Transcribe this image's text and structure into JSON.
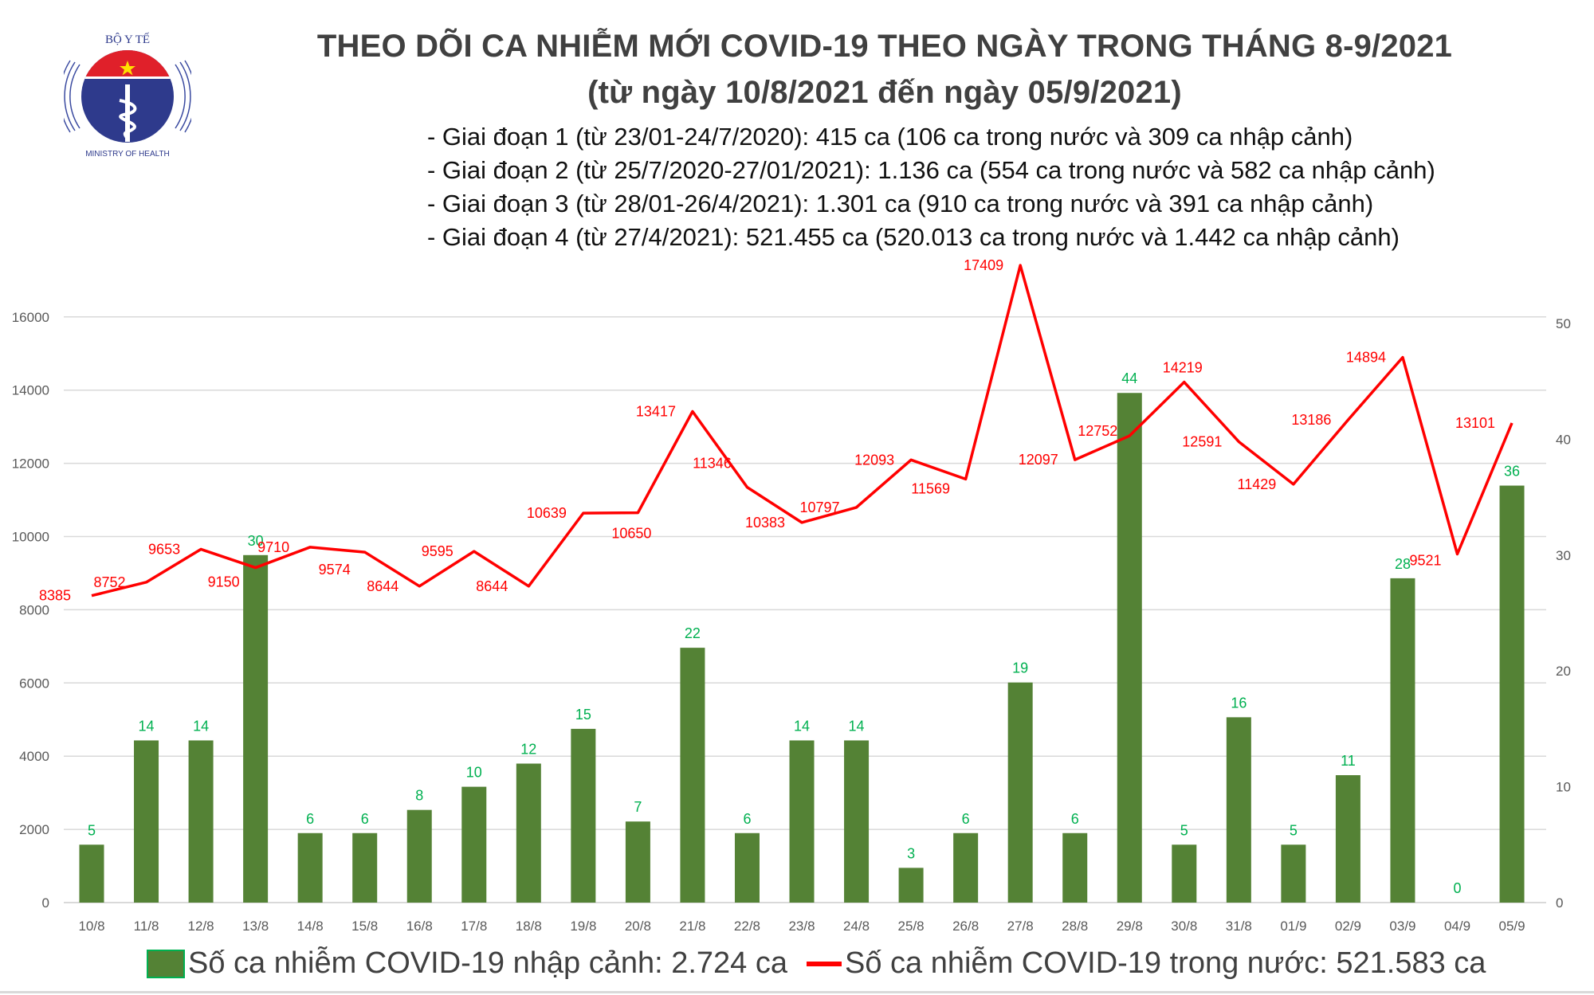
{
  "header": {
    "title_line1": "THEO DÕI CA NHIỄM MỚI COVID-19 THEO NGÀY TRONG THÁNG 8-9/2021",
    "title_line2": "(từ ngày 10/8/2021 đến ngày 05/9/2021)",
    "phases": [
      "- Giai đoạn 1 (từ 23/01-24/7/2020): 415 ca (106 ca trong nước và 309 ca nhập cảnh)",
      "- Giai đoạn 2 (từ 25/7/2020-27/01/2021): 1.136 ca (554 ca trong nước và 582 ca nhập cảnh)",
      "- Giai đoạn 3 (từ 28/01-26/4/2021): 1.301 ca (910 ca trong nước và 391 ca nhập cảnh)",
      "- Giai đoạn 4 (từ 27/4/2021): 521.455 ca (520.013 ca trong nước và 1.442 ca nhập cảnh)"
    ]
  },
  "logo": {
    "top_text": "BỘ Y TẾ",
    "bottom_text": "MINISTRY OF HEALTH"
  },
  "chart_data": {
    "type": "bar+line",
    "categories": [
      "10/8",
      "11/8",
      "12/8",
      "13/8",
      "14/8",
      "15/8",
      "16/8",
      "17/8",
      "18/8",
      "19/8",
      "20/8",
      "21/8",
      "22/8",
      "23/8",
      "24/8",
      "25/8",
      "26/8",
      "27/8",
      "28/8",
      "29/8",
      "30/8",
      "31/8",
      "01/9",
      "02/9",
      "03/9",
      "04/9",
      "05/9"
    ],
    "series": [
      {
        "name": "Số ca nhiễm COVID-19 nhập cảnh: 2.724 ca",
        "type": "bar",
        "axis": "right",
        "color": "#548235",
        "label_color": "#00B050",
        "values": [
          5,
          14,
          14,
          30,
          6,
          6,
          8,
          10,
          12,
          15,
          7,
          22,
          6,
          14,
          14,
          3,
          6,
          19,
          6,
          44,
          5,
          16,
          5,
          11,
          28,
          0,
          36
        ]
      },
      {
        "name": "Số ca nhiễm COVID-19 trong nước: 521.583 ca",
        "type": "line",
        "axis": "left",
        "color": "#FF0000",
        "label_color": "#FF0000",
        "values": [
          8385,
          8752,
          9653,
          9150,
          9710,
          9574,
          8644,
          9595,
          8644,
          10639,
          10650,
          13417,
          11346,
          10383,
          10797,
          12093,
          11569,
          17409,
          12097,
          12752,
          14219,
          12591,
          11429,
          13186,
          14894,
          9521,
          13101
        ]
      }
    ],
    "left_axis": {
      "ticks": [
        0,
        2000,
        4000,
        6000,
        8000,
        10000,
        12000,
        14000,
        16000
      ],
      "range": [
        0,
        18000
      ]
    },
    "right_axis": {
      "ticks": [
        0,
        10,
        20,
        30,
        40,
        50
      ],
      "range": [
        0,
        56.7
      ]
    },
    "grid": true,
    "legend_position": "bottom"
  }
}
